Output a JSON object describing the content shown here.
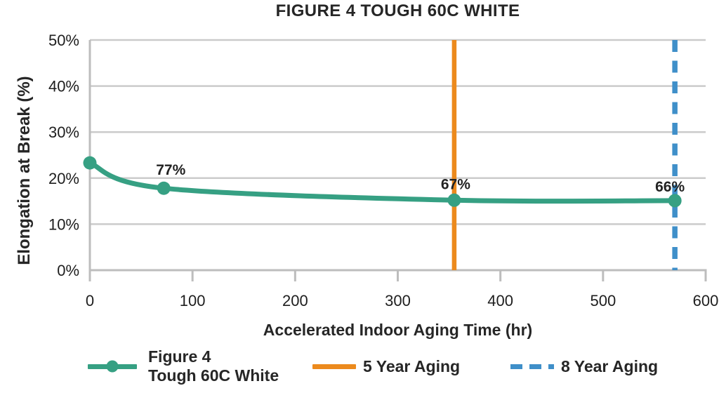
{
  "chart_data": {
    "type": "line",
    "title": "FIGURE 4 TOUGH 60C WHITE",
    "xlabel": "Accelerated Indoor Aging Time (hr)",
    "ylabel": "Elongation at Break (%)",
    "xlim": [
      0,
      600
    ],
    "ylim": [
      0,
      50
    ],
    "x_ticks": {
      "values": [
        0,
        100,
        200,
        300,
        400,
        500,
        600
      ],
      "labels": [
        "0",
        "100",
        "200",
        "300",
        "400",
        "500",
        "600"
      ]
    },
    "y_ticks": {
      "values": [
        0,
        10,
        20,
        30,
        40,
        50
      ],
      "labels": [
        "0%",
        "10%",
        "20%",
        "30%",
        "40%",
        "50%"
      ]
    },
    "grid": {
      "horizontal": true,
      "vertical": false
    },
    "legend_position": "bottom",
    "colors": {
      "series": "#36A083",
      "five_year": "#EC8A1D",
      "eight_year": "#3F8FC9",
      "gridline": "#CBCBCB",
      "axis": "#BDBDBD",
      "text": "#262626"
    },
    "series": [
      {
        "kind": "line",
        "name": "Figure 4 Tough 60C White",
        "color": "#36A083",
        "marker": "circle",
        "smooth": true,
        "x": [
          0,
          72,
          355,
          570
        ],
        "y": [
          23.3,
          17.8,
          15.2,
          15.1
        ],
        "point_labels": [
          "",
          "77%",
          "67%",
          "66%"
        ]
      },
      {
        "kind": "vline",
        "name": "5 Year Aging",
        "color": "#EC8A1D",
        "x": 355,
        "style": "solid"
      },
      {
        "kind": "vline",
        "name": "8 Year Aging",
        "color": "#3F8FC9",
        "x": 570,
        "style": "dashed"
      }
    ],
    "legend": {
      "entries": [
        {
          "label_lines": [
            "Figure 4",
            "Tough 60C White"
          ],
          "swatch": "line-dot",
          "color": "#36A083"
        },
        {
          "label_lines": [
            "5 Year Aging"
          ],
          "swatch": "line",
          "color": "#EC8A1D"
        },
        {
          "label_lines": [
            "8 Year Aging"
          ],
          "swatch": "dashed-line",
          "color": "#3F8FC9"
        }
      ]
    }
  }
}
